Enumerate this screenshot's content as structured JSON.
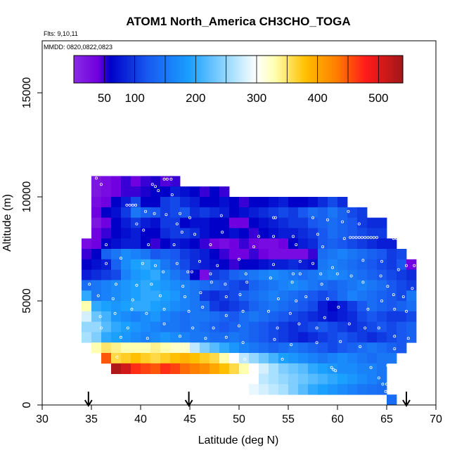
{
  "chart_data": {
    "type": "heatmap",
    "title": "ATOM1 North_America CH3CHO_TOGA",
    "flights_label": "Flts: 9,10,11",
    "dates_label": "MMDD: 0820,0822,0823",
    "xlabel": "Latitude (deg N)",
    "ylabel": "Altitude (m)",
    "xlim": [
      30,
      70
    ],
    "ylim": [
      0,
      17500
    ],
    "x_ticks": [
      30,
      35,
      40,
      45,
      50,
      55,
      60,
      65,
      70
    ],
    "y_ticks": [
      0,
      5000,
      10000,
      15000
    ],
    "colorbar": {
      "range": [
        0,
        540
      ],
      "ticks": [
        50,
        100,
        200,
        300,
        400,
        500
      ],
      "bins": [
        50,
        100,
        150,
        200,
        250,
        300,
        350,
        400,
        450,
        500
      ],
      "colors": [
        "#7a16e6",
        "#0a0ac8",
        "#1040ff",
        "#1aa0ff",
        "#a6e4ff",
        "#ffffcc",
        "#ffd24a",
        "#ff8c00",
        "#ff0000",
        "#a01010"
      ]
    },
    "cell_size": {
      "lat_deg": 1.0,
      "alt_m": 500
    },
    "grid": false,
    "profile_markers_lat": [
      34.7,
      44.9,
      67.0
    ],
    "rows": [
      {
        "alt": 10750,
        "lat_start": 35,
        "values": [
          20,
          30,
          40,
          50,
          40,
          50,
          55,
          45,
          50
        ]
      },
      {
        "alt": 10250,
        "lat_start": 35,
        "values": [
          20,
          30,
          40,
          50,
          50,
          55,
          60,
          60,
          80,
          70,
          60,
          50,
          60,
          50
        ]
      },
      {
        "alt": 9750,
        "lat_start": 35,
        "values": [
          30,
          40,
          60,
          80,
          110,
          60,
          60,
          100,
          110,
          90,
          80,
          60,
          60,
          70,
          60,
          50,
          60,
          60,
          70,
          80,
          60,
          60,
          70,
          90,
          110,
          90
        ]
      },
      {
        "alt": 9250,
        "lat_start": 35,
        "values": [
          40,
          60,
          70,
          100,
          150,
          130,
          120,
          100,
          110,
          120,
          90,
          100,
          90,
          80,
          60,
          70,
          80,
          90,
          100,
          110,
          100,
          120,
          140,
          130,
          150,
          130,
          110,
          100
        ]
      },
      {
        "alt": 8750,
        "lat_start": 35,
        "values": [
          20,
          40,
          60,
          80,
          100,
          80,
          70,
          100,
          100,
          60,
          70,
          70,
          60,
          60,
          40,
          40,
          60,
          70,
          80,
          90,
          100,
          100,
          120,
          130,
          140,
          130,
          120,
          100,
          90,
          90
        ]
      },
      {
        "alt": 8250,
        "lat_start": 35,
        "values": [
          40,
          50,
          60,
          70,
          80,
          60,
          60,
          90,
          100,
          100,
          90,
          70,
          60,
          60,
          70,
          60,
          50,
          60,
          70,
          80,
          80,
          90,
          100,
          120,
          140,
          130,
          120,
          110,
          100,
          100
        ]
      },
      {
        "alt": 7750,
        "lat_start": 34,
        "values": [
          30,
          40,
          60,
          70,
          80,
          80,
          60,
          50,
          60,
          80,
          70,
          60,
          50,
          40,
          30,
          40,
          50,
          40,
          30,
          30,
          40,
          60,
          80,
          90,
          120,
          130,
          120,
          110,
          100,
          90,
          80,
          80
        ]
      },
      {
        "alt": 7250,
        "lat_start": 34,
        "values": [
          50,
          60,
          130,
          150,
          170,
          160,
          150,
          120,
          130,
          120,
          100,
          90,
          80,
          60,
          50,
          40,
          40,
          50,
          40,
          30,
          30,
          30,
          30,
          50,
          140,
          150,
          160,
          150,
          140,
          130,
          120,
          100,
          110
        ]
      },
      {
        "alt": 6750,
        "lat_start": 34,
        "values": [
          60,
          70,
          80,
          130,
          170,
          190,
          200,
          180,
          150,
          130,
          110,
          90,
          80,
          70,
          60,
          50,
          60,
          60,
          70,
          80,
          80,
          90,
          80,
          70,
          150,
          160,
          150,
          140,
          130,
          120,
          110,
          100,
          120,
          40
        ]
      },
      {
        "alt": 6250,
        "lat_start": 34,
        "values": [
          80,
          90,
          100,
          110,
          160,
          180,
          190,
          200,
          170,
          150,
          130,
          60,
          30,
          100,
          110,
          130,
          140,
          150,
          160,
          170,
          160,
          150,
          140,
          150,
          160,
          170,
          160,
          150,
          140,
          130,
          120,
          110,
          100,
          90
        ]
      },
      {
        "alt": 5750,
        "lat_start": 34,
        "values": [
          140,
          150,
          160,
          170,
          180,
          190,
          200,
          190,
          180,
          170,
          160,
          150,
          140,
          130,
          120,
          110,
          100,
          130,
          140,
          150,
          160,
          170,
          160,
          150,
          140,
          130,
          140,
          150,
          160,
          150,
          140,
          120,
          110,
          100
        ]
      },
      {
        "alt": 5250,
        "lat_start": 34,
        "values": [
          200,
          150,
          160,
          170,
          180,
          190,
          200,
          200,
          190,
          180,
          160,
          150,
          100,
          90,
          100,
          110,
          130,
          140,
          150,
          160,
          150,
          140,
          130,
          120,
          110,
          120,
          140,
          160,
          150,
          140,
          130,
          120,
          110,
          150
        ]
      },
      {
        "alt": 4750,
        "lat_start": 34,
        "values": [
          330,
          200,
          190,
          180,
          190,
          200,
          200,
          190,
          180,
          170,
          160,
          150,
          140,
          100,
          90,
          100,
          110,
          130,
          140,
          150,
          140,
          130,
          120,
          110,
          80,
          60,
          80,
          100,
          120,
          140,
          130,
          120,
          130,
          140
        ]
      },
      {
        "alt": 4250,
        "lat_start": 34,
        "values": [
          280,
          230,
          210,
          180,
          170,
          160,
          170,
          180,
          160,
          150,
          140,
          150,
          150,
          140,
          130,
          120,
          140,
          150,
          140,
          130,
          120,
          110,
          100,
          90,
          80,
          70,
          80,
          90,
          110,
          120,
          110,
          100,
          100,
          110
        ]
      },
      {
        "alt": 3750,
        "lat_start": 34,
        "values": [
          250,
          250,
          220,
          200,
          190,
          180,
          170,
          160,
          150,
          150,
          140,
          150,
          140,
          130,
          120,
          130,
          140,
          130,
          120,
          110,
          100,
          90,
          100,
          110,
          120,
          110,
          100,
          90,
          100,
          110,
          120,
          110,
          120,
          130
        ]
      },
      {
        "alt": 3250,
        "lat_start": 34,
        "values": [
          260,
          240,
          200,
          190,
          180,
          170,
          160,
          170,
          180,
          170,
          160,
          150,
          150,
          140,
          140,
          150,
          140,
          130,
          120,
          110,
          100,
          90,
          80,
          90,
          100,
          110,
          120,
          110,
          100,
          90,
          100,
          110,
          120,
          130
        ]
      },
      {
        "alt": 2750,
        "lat_start": 35,
        "values": [
          330,
          350,
          340,
          330,
          330,
          330,
          340,
          330,
          320,
          320,
          270,
          240,
          220,
          200,
          180,
          160,
          150,
          140,
          130,
          140,
          150,
          140,
          130,
          120,
          110,
          120,
          130,
          140,
          150,
          140,
          130,
          120
        ]
      },
      {
        "alt": 2250,
        "lat_start": 36,
        "values": [
          450,
          360,
          370,
          380,
          370,
          360,
          370,
          380,
          390,
          380,
          370,
          360,
          330,
          300,
          270,
          250,
          230,
          210,
          190,
          180,
          170,
          160,
          150,
          160,
          170,
          160,
          150,
          140,
          150,
          150
        ]
      },
      {
        "alt": 1750,
        "lat_start": 37,
        "values": [
          530,
          510,
          470,
          460,
          450,
          470,
          460,
          440,
          430,
          420,
          400,
          380,
          360,
          330,
          300,
          280,
          260,
          240,
          230,
          220,
          200,
          190,
          180,
          170,
          170,
          160,
          160,
          150
        ]
      },
      {
        "alt": 1250,
        "lat_start": 51,
        "values": [
          300,
          270,
          260,
          250,
          240,
          230,
          220,
          210,
          200,
          190,
          180,
          170,
          160,
          150
        ]
      },
      {
        "alt": 750,
        "lat_start": 51,
        "values": [
          290,
          280,
          270,
          260,
          240,
          220,
          200,
          190,
          180,
          170,
          160,
          150,
          145,
          140
        ]
      },
      {
        "alt": 250,
        "lat_start": 65,
        "values": [
          140
        ]
      }
    ],
    "obs_points": [
      [
        35.5,
        10900
      ],
      [
        36.0,
        10600
      ],
      [
        41.2,
        10600
      ],
      [
        41.5,
        10500
      ],
      [
        42.4,
        10850
      ],
      [
        42.7,
        10850
      ],
      [
        43.1,
        10850
      ],
      [
        41.8,
        10300
      ],
      [
        43.2,
        10100
      ],
      [
        38.6,
        9600
      ],
      [
        38.9,
        9600
      ],
      [
        39.2,
        9600
      ],
      [
        39.5,
        9600
      ],
      [
        40.5,
        9300
      ],
      [
        41.4,
        9200
      ],
      [
        42.6,
        9150
      ],
      [
        44.0,
        9200
      ],
      [
        53.5,
        9000
      ],
      [
        53.7,
        9000
      ],
      [
        57.5,
        9000
      ],
      [
        59.0,
        8900
      ],
      [
        60.5,
        8800
      ],
      [
        61.1,
        9300
      ],
      [
        62.2,
        8700
      ],
      [
        39.6,
        8700
      ],
      [
        43.7,
        8700
      ],
      [
        45.0,
        9000
      ],
      [
        48.2,
        9100
      ],
      [
        40.3,
        8400
      ],
      [
        44.2,
        8300
      ],
      [
        45.5,
        8200
      ],
      [
        48.3,
        8300
      ],
      [
        52.0,
        8100
      ],
      [
        53.5,
        8100
      ],
      [
        55.5,
        8100
      ],
      [
        58.0,
        8200
      ],
      [
        60.7,
        8000
      ],
      [
        61.3,
        8050
      ],
      [
        61.6,
        8050
      ],
      [
        61.9,
        8050
      ],
      [
        62.2,
        8050
      ],
      [
        62.5,
        8050
      ],
      [
        62.8,
        8050
      ],
      [
        63.1,
        8050
      ],
      [
        63.4,
        8050
      ],
      [
        63.7,
        8050
      ],
      [
        64.0,
        8050
      ],
      [
        65.7,
        8000
      ],
      [
        66.0,
        8000
      ],
      [
        66.3,
        8000
      ],
      [
        36.5,
        7700
      ],
      [
        40.8,
        7700
      ],
      [
        43.4,
        7700
      ],
      [
        47.1,
        7700
      ],
      [
        51.5,
        7600
      ],
      [
        55.8,
        7700
      ],
      [
        58.5,
        7600
      ],
      [
        36.5,
        6800
      ],
      [
        38.0,
        7050
      ],
      [
        40.2,
        6800
      ],
      [
        41.5,
        6700
      ],
      [
        43.7,
        6800
      ],
      [
        46.0,
        6900
      ],
      [
        47.8,
        6700
      ],
      [
        50.0,
        7000
      ],
      [
        53.5,
        6750
      ],
      [
        56.2,
        6900
      ],
      [
        57.5,
        6800
      ],
      [
        59.5,
        6600
      ],
      [
        62.6,
        6950
      ],
      [
        64.5,
        6900
      ],
      [
        66.2,
        6500
      ],
      [
        67.0,
        6700
      ],
      [
        67.8,
        6700
      ],
      [
        42.3,
        6400
      ],
      [
        44.8,
        6400
      ],
      [
        45.2,
        6400
      ],
      [
        47.1,
        6300
      ],
      [
        50.7,
        6300
      ],
      [
        53.2,
        6100
      ],
      [
        55.5,
        6300
      ],
      [
        56.2,
        6300
      ],
      [
        58.3,
        6300
      ],
      [
        60.0,
        6300
      ],
      [
        61.4,
        6200
      ],
      [
        64.4,
        6200
      ],
      [
        34.8,
        5800
      ],
      [
        37.5,
        5800
      ],
      [
        39.6,
        5750
      ],
      [
        41.1,
        5800
      ],
      [
        44.3,
        5700
      ],
      [
        47.2,
        5900
      ],
      [
        48.6,
        5800
      ],
      [
        50.8,
        5900
      ],
      [
        55.4,
        5900
      ],
      [
        58.4,
        5800
      ],
      [
        62.6,
        5900
      ],
      [
        65.1,
        5700
      ],
      [
        67.6,
        5600
      ],
      [
        35.7,
        5250
      ],
      [
        37.2,
        5100
      ],
      [
        39.2,
        5050
      ],
      [
        42.0,
        5250
      ],
      [
        44.5,
        5200
      ],
      [
        46.1,
        5400
      ],
      [
        48.7,
        5200
      ],
      [
        50.1,
        5300
      ],
      [
        54.0,
        5100
      ],
      [
        55.8,
        5000
      ],
      [
        56.8,
        5200
      ],
      [
        59.0,
        5100
      ],
      [
        64.5,
        5000
      ],
      [
        65.7,
        5300
      ],
      [
        66.7,
        5200
      ],
      [
        35.9,
        4250
      ],
      [
        37.4,
        4400
      ],
      [
        39.1,
        4600
      ],
      [
        40.6,
        4400
      ],
      [
        42.4,
        4600
      ],
      [
        44.9,
        4500
      ],
      [
        46.3,
        4700
      ],
      [
        48.7,
        4300
      ],
      [
        50.4,
        4500
      ],
      [
        53.0,
        4500
      ],
      [
        55.2,
        4400
      ],
      [
        58.7,
        4200
      ],
      [
        60.1,
        4700
      ],
      [
        63.1,
        4600
      ],
      [
        65.8,
        4600
      ],
      [
        67.0,
        4500
      ],
      [
        36.0,
        3700
      ],
      [
        38.7,
        3700
      ],
      [
        42.4,
        3900
      ],
      [
        45.3,
        3700
      ],
      [
        47.4,
        3700
      ],
      [
        50.0,
        3800
      ],
      [
        53.9,
        3700
      ],
      [
        56.1,
        3900
      ],
      [
        57.9,
        3700
      ],
      [
        61.2,
        3900
      ],
      [
        62.8,
        3700
      ],
      [
        64.2,
        3700
      ],
      [
        65.8,
        3300
      ],
      [
        67.2,
        3200
      ],
      [
        38.0,
        3250
      ],
      [
        40.7,
        3200
      ],
      [
        44.0,
        3300
      ],
      [
        46.6,
        3200
      ],
      [
        48.7,
        3250
      ],
      [
        50.4,
        3000
      ],
      [
        53.6,
        3150
      ],
      [
        55.3,
        2900
      ],
      [
        57.9,
        3000
      ],
      [
        60.3,
        3050
      ],
      [
        62.3,
        2800
      ],
      [
        65.8,
        2700
      ],
      [
        67.6,
        2700
      ],
      [
        50.6,
        2200
      ],
      [
        54.4,
        2200
      ],
      [
        59.4,
        1800
      ],
      [
        59.6,
        1700
      ],
      [
        59.8,
        1650
      ],
      [
        63.4,
        1800
      ],
      [
        65.1,
        1900
      ],
      [
        66.7,
        2000
      ],
      [
        64.2,
        1300
      ],
      [
        64.6,
        1000
      ],
      [
        65.0,
        1000
      ],
      [
        64.9,
        650
      ],
      [
        34.5,
        2000
      ],
      [
        36.4,
        1900
      ],
      [
        37.6,
        2300
      ]
    ]
  }
}
